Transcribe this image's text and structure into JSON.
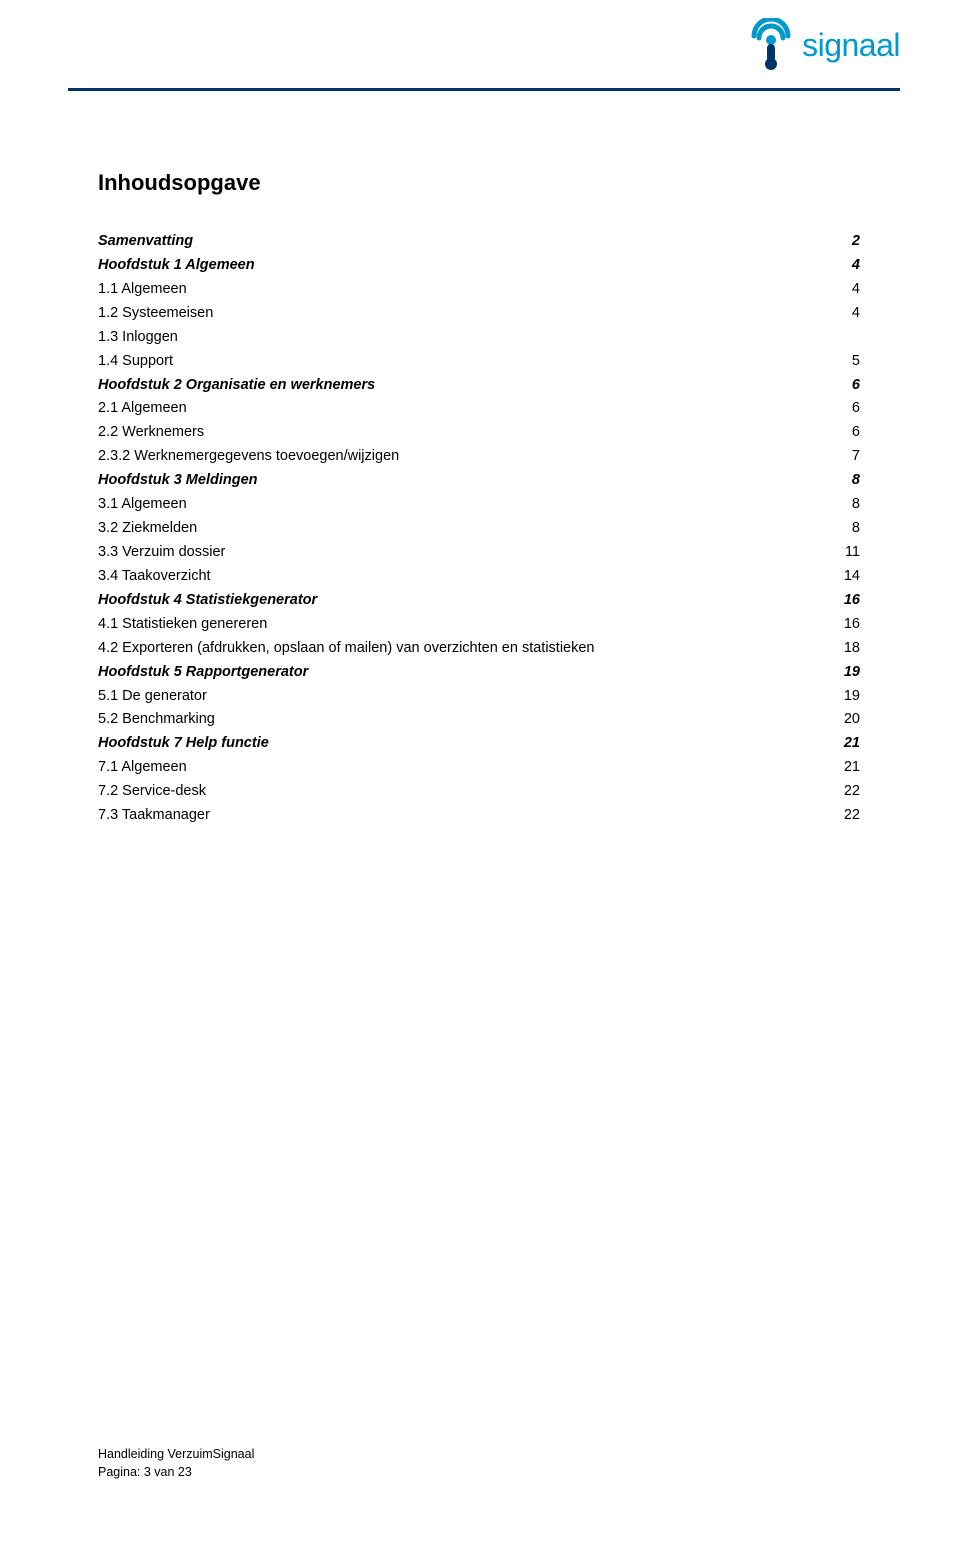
{
  "brand": {
    "name": "signaal",
    "accent_color": "#0099cc",
    "rule_color": "#003366"
  },
  "title": "Inhoudsopgave",
  "toc": [
    {
      "label": "Samenvatting",
      "page": "2",
      "style": "italic",
      "indent": 0
    },
    {
      "label": "Hoofdstuk 1 Algemeen",
      "page": "4",
      "style": "italic",
      "indent": 0
    },
    {
      "label": "1.1  Algemeen",
      "page": "4",
      "style": "normal",
      "indent": 1
    },
    {
      "label": "1.2  Systeemeisen",
      "page": "4",
      "style": "normal",
      "indent": 1
    },
    {
      "label": "1.3  Inloggen",
      "page": "",
      "style": "normal",
      "indent": 1,
      "no_leader": true
    },
    {
      "label": "1.4  Support",
      "page": "5",
      "style": "normal",
      "indent": 1
    },
    {
      "label": "Hoofdstuk 2 Organisatie en werknemers",
      "page": "6",
      "style": "italic",
      "indent": 0
    },
    {
      "label": "2.1  Algemeen",
      "page": "6",
      "style": "normal",
      "indent": 1
    },
    {
      "label": "2.2  Werknemers",
      "page": "6",
      "style": "normal",
      "indent": 1
    },
    {
      "label": "2.3.2 Werknemergegevens toevoegen/wijzigen",
      "page": "7",
      "style": "normal",
      "indent": 1
    },
    {
      "label": "Hoofdstuk 3 Meldingen",
      "page": "8",
      "style": "italic",
      "indent": 0
    },
    {
      "label": "3.1  Algemeen",
      "page": "8",
      "style": "normal",
      "indent": 1
    },
    {
      "label": "3.2  Ziekmelden",
      "page": "8",
      "style": "normal",
      "indent": 1
    },
    {
      "label": "3.3  Verzuim dossier",
      "page": "11",
      "style": "normal",
      "indent": 1
    },
    {
      "label": "3.4  Taakoverzicht",
      "page": "14",
      "style": "normal",
      "indent": 1
    },
    {
      "label": "Hoofdstuk 4 Statistiekgenerator",
      "page": "16",
      "style": "italic",
      "indent": 0
    },
    {
      "label": "4.1  Statistieken genereren",
      "page": "16",
      "style": "normal",
      "indent": 1
    },
    {
      "label": "4.2  Exporteren (afdrukken, opslaan of mailen) van overzichten en statistieken",
      "page": "18",
      "style": "normal",
      "indent": 1
    },
    {
      "label": "Hoofdstuk 5 Rapportgenerator",
      "page": "19",
      "style": "italic",
      "indent": 0
    },
    {
      "label": "5.1  De generator",
      "page": "19",
      "style": "normal",
      "indent": 1
    },
    {
      "label": "5.2  Benchmarking",
      "page": "20",
      "style": "normal",
      "indent": 1
    },
    {
      "label": "Hoofdstuk 7 Help functie",
      "page": "21",
      "style": "italic",
      "indent": 0
    },
    {
      "label": "7.1  Algemeen",
      "page": "21",
      "style": "normal",
      "indent": 1
    },
    {
      "label": "7.2  Service-desk",
      "page": "22",
      "style": "normal",
      "indent": 1
    },
    {
      "label": "7.3  Taakmanager",
      "page": "22",
      "style": "normal",
      "indent": 1
    }
  ],
  "footer": {
    "line1": "Handleiding VerzuimSignaal",
    "line2": "Pagina: 3 van 23"
  }
}
